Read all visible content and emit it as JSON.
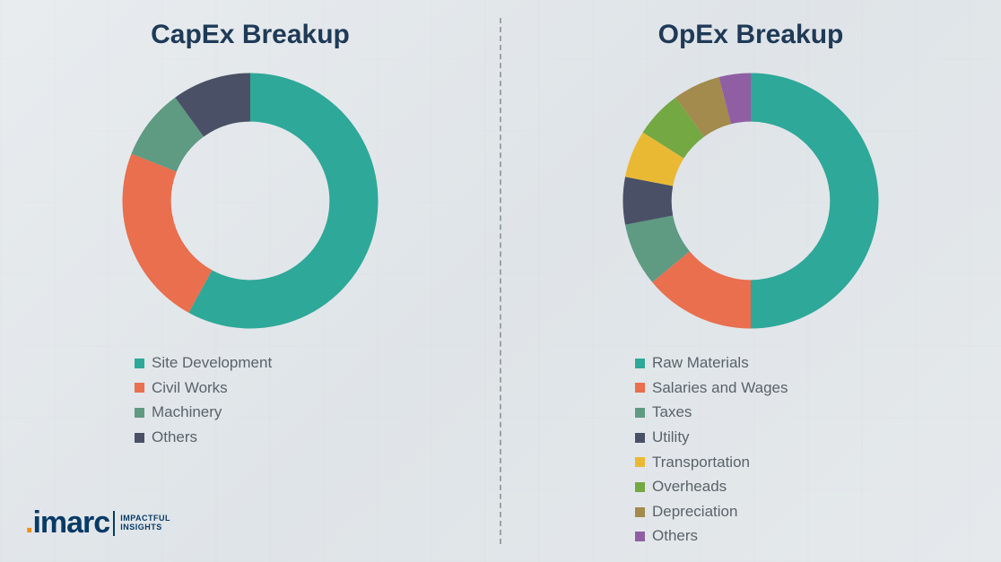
{
  "background_color": "#e8ecef",
  "divider_color": "#9aa3a8",
  "title_color": "#1e3a57",
  "legend_text_color": "#5a636a",
  "charts": {
    "capex": {
      "type": "donut",
      "title": "CapEx Breakup",
      "title_fontsize": 30,
      "inner_radius_pct": 62,
      "outer_radius_pct": 100,
      "start_angle_deg": 0,
      "slices": [
        {
          "label": "Site Development",
          "value": 58,
          "color": "#2ea898"
        },
        {
          "label": "Civil Works",
          "value": 23,
          "color": "#e96f4e"
        },
        {
          "label": "Machinery",
          "value": 9,
          "color": "#5f9a82"
        },
        {
          "label": "Others",
          "value": 10,
          "color": "#4a5166"
        }
      ]
    },
    "opex": {
      "type": "donut",
      "title": "OpEx Breakup",
      "title_fontsize": 30,
      "inner_radius_pct": 62,
      "outer_radius_pct": 100,
      "start_angle_deg": 0,
      "slices": [
        {
          "label": "Raw Materials",
          "value": 50,
          "color": "#2ea898"
        },
        {
          "label": "Salaries and Wages",
          "value": 14,
          "color": "#e96f4e"
        },
        {
          "label": "Taxes",
          "value": 8,
          "color": "#5f9a82"
        },
        {
          "label": "Utility",
          "value": 6,
          "color": "#4a5166"
        },
        {
          "label": "Transportation",
          "value": 6,
          "color": "#eab934"
        },
        {
          "label": "Overheads",
          "value": 6,
          "color": "#73a843"
        },
        {
          "label": "Depreciation",
          "value": 6,
          "color": "#a38a4d"
        },
        {
          "label": "Others",
          "value": 4,
          "color": "#8f5ea3"
        }
      ]
    }
  },
  "logo": {
    "mark_prefix": "imar",
    "mark_suffix": "c",
    "dot_color": "#f28c1c",
    "text_color": "#083a66",
    "tagline_line1": "IMPACTFUL",
    "tagline_line2": "INSIGHTS"
  }
}
